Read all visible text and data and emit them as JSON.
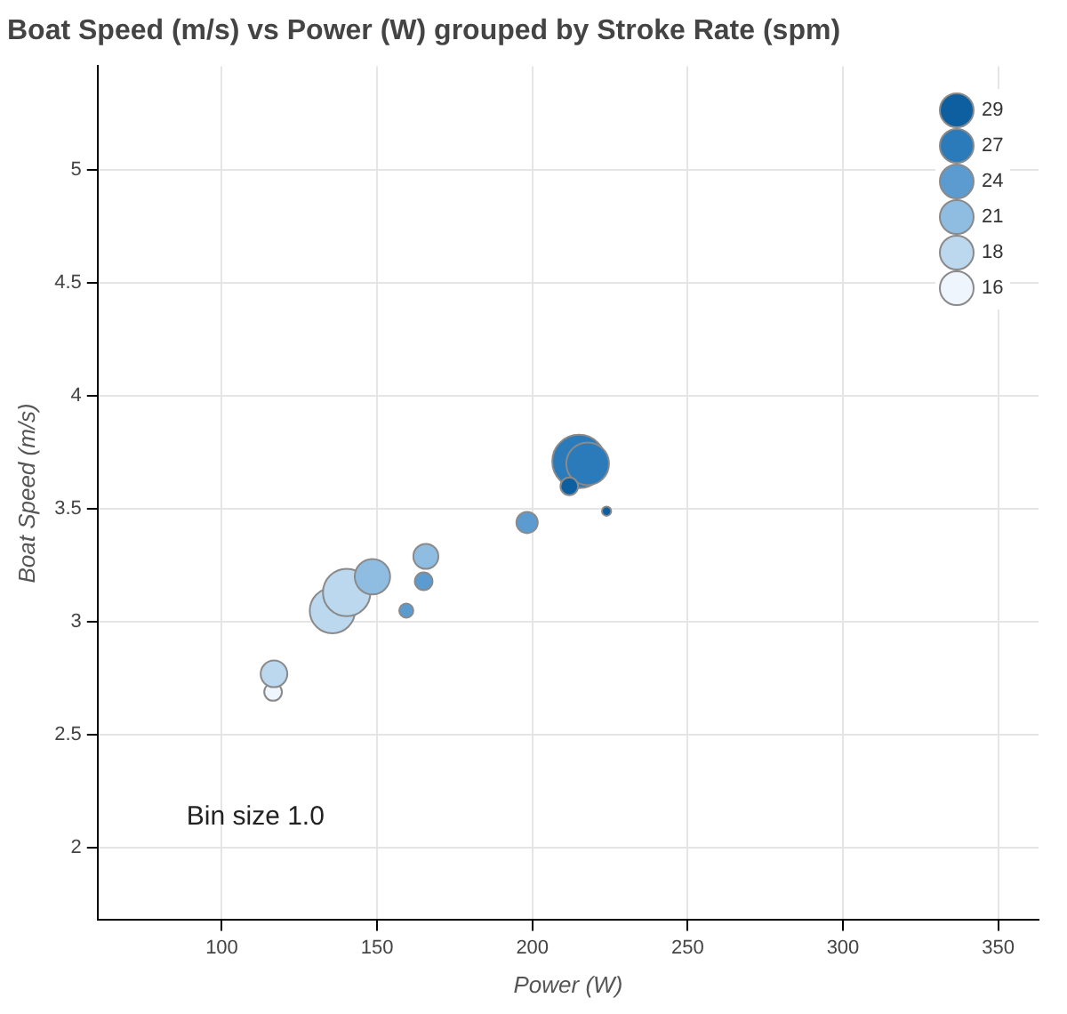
{
  "chart_data": {
    "type": "bubble",
    "title": "Boat Speed (m/s) vs Power (W) grouped by Stroke Rate (spm)",
    "xlabel": "Power (W)",
    "ylabel": "Boat Speed (m/s)",
    "xlim": [
      60,
      363
    ],
    "xticks": [
      100,
      150,
      200,
      250,
      300,
      350
    ],
    "ylim": [
      1.68,
      5.46
    ],
    "yticks": [
      2,
      2.5,
      3,
      3.5,
      4,
      4.5,
      5
    ],
    "grid": true,
    "legend": "top right",
    "marker": "circle",
    "annotations": [
      "Bin size 1.0"
    ],
    "series": [
      {
        "name": "29",
        "color": "#0d5f9f",
        "x": [
          211.9,
          223.9
        ],
        "values": [
          3.6,
          3.49
        ],
        "sizes": [
          0.11,
          0.03
        ]
      },
      {
        "name": "27",
        "color": "#2b7bba",
        "x": [
          215,
          217.8
        ],
        "values": [
          3.71,
          3.7
        ],
        "sizes": [
          1,
          0.64
        ]
      },
      {
        "name": "24",
        "color": "#5b9bcf",
        "x": [
          198.3,
          165,
          159.4
        ],
        "values": [
          3.44,
          3.18,
          3.05
        ],
        "sizes": [
          0.16,
          0.11,
          0.07
        ]
      },
      {
        "name": "21",
        "color": "#8fbde1",
        "x": [
          148.5,
          165.7
        ],
        "values": [
          3.2,
          3.29
        ],
        "sizes": [
          0.44,
          0.22
        ]
      },
      {
        "name": "18",
        "color": "#bcd8ee",
        "x": [
          116.8,
          135.6,
          140.2
        ],
        "values": [
          2.77,
          3.05,
          3.13
        ],
        "sizes": [
          0.25,
          0.72,
          0.79
        ]
      },
      {
        "name": "16",
        "color": "#eef5fd",
        "x": [
          116.5
        ],
        "values": [
          2.69
        ],
        "sizes": [
          0.11
        ]
      }
    ]
  }
}
